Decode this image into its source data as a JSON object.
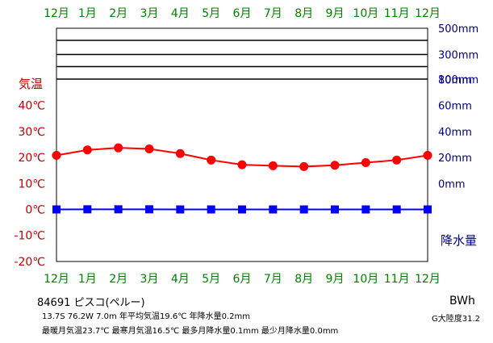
{
  "chart_data": {
    "type": "line",
    "categories": [
      "12月",
      "1月",
      "2月",
      "3月",
      "4月",
      "5月",
      "6月",
      "7月",
      "8月",
      "9月",
      "10月",
      "11月",
      "12月"
    ],
    "temp_axis": {
      "label": "気温",
      "ticks": [
        "40℃",
        "30℃",
        "20℃",
        "10℃",
        "0℃",
        "-10℃",
        "-20℃"
      ],
      "values": [
        40,
        30,
        20,
        10,
        0,
        -10,
        -20
      ],
      "ylim": [
        -20,
        40
      ]
    },
    "precip_axis": {
      "label": "降水量",
      "ticks": [
        "500mm",
        "300mm",
        "100mm",
        "80mm",
        "60mm",
        "40mm",
        "20mm",
        "0mm"
      ],
      "linear_ylim": [
        0,
        100
      ],
      "upper_ticks_mm": [
        100,
        300,
        500
      ]
    },
    "series": [
      {
        "values": [
          20.8,
          22.9,
          23.7,
          23.3,
          21.5,
          19.0,
          17.2,
          16.8,
          16.5,
          17.0,
          18.0,
          19.0,
          20.8
        ],
        "axis": "temperature",
        "color": "#ff0000",
        "marker": "circle"
      },
      {
        "values": [
          0,
          0.1,
          0.1,
          0.1,
          0,
          0,
          0,
          0,
          0,
          0,
          0,
          0,
          0
        ],
        "axis": "precipitation",
        "color": "#0000ff",
        "marker": "square"
      }
    ],
    "grid": true
  },
  "station": {
    "header": "84691 ピスコ(ペルー)",
    "line2": "13.7S  76.2W  7.0m  年平均気温19.6℃  年降水量0.2mm",
    "line3": "最暖月気温23.7℃ 最寒月気温16.5℃ 最多月降水量0.1mm 最少月降水量0.0mm",
    "climate_code": "BWh",
    "continentality": "G大陸度31.2"
  },
  "colors": {
    "month_labels": "#008000",
    "temperature": "#ff0000",
    "precipitation": "#0000ff",
    "temp_axis_text": "#c00000",
    "precip_axis_text": "#000080",
    "frame": "#000000"
  }
}
